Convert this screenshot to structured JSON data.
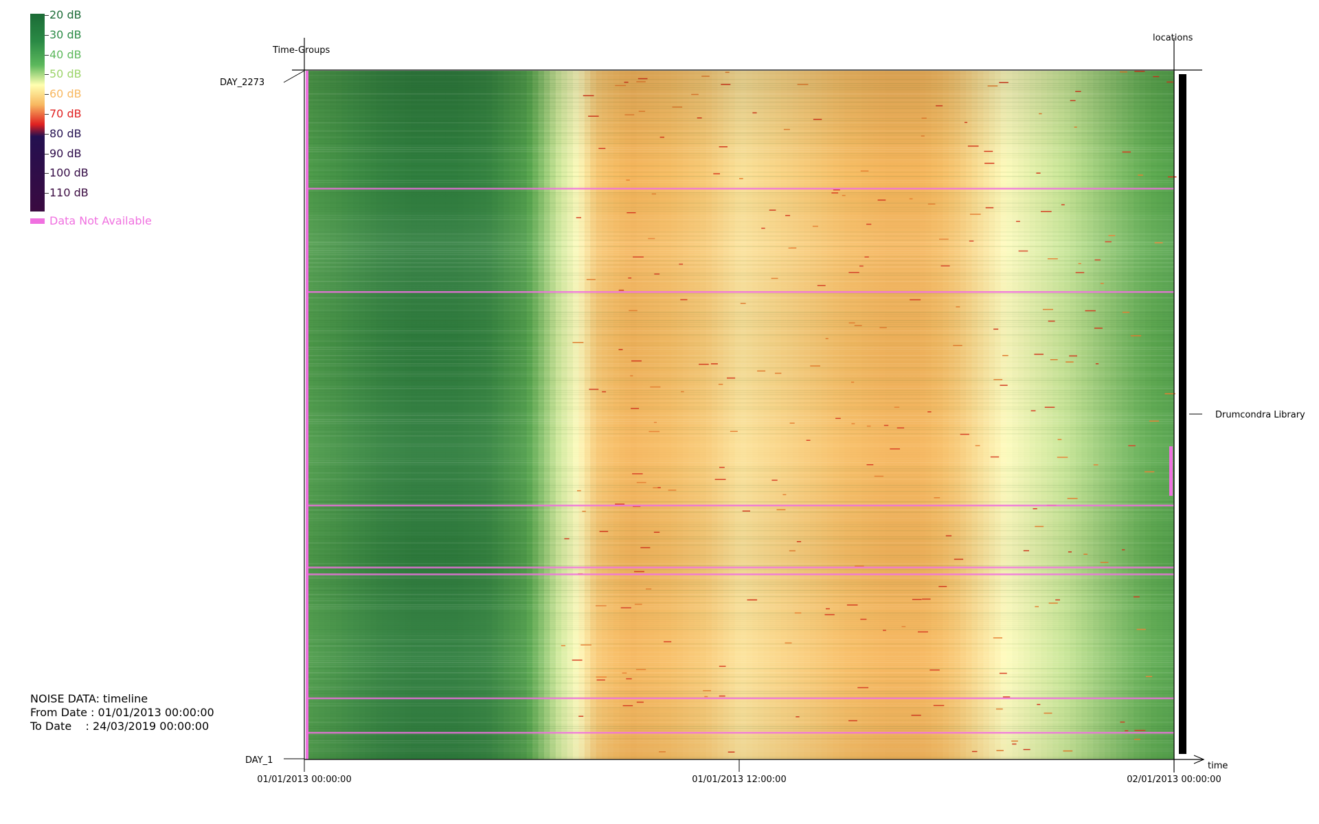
{
  "legend": {
    "items": [
      {
        "label": "20 dB",
        "color": "#1b6b36"
      },
      {
        "label": "30 dB",
        "color": "#2a8a45"
      },
      {
        "label": "40 dB",
        "color": "#5cb85c"
      },
      {
        "label": "50 dB",
        "color": "#c9e89a"
      },
      {
        "label": "60 dB",
        "color": "#f8b860"
      },
      {
        "label": "70 dB",
        "color": "#e02020"
      },
      {
        "label": "80 dB",
        "color": "#241050"
      },
      {
        "label": "90 dB",
        "color": "#2c0a48"
      },
      {
        "label": "100 dB",
        "color": "#330a44"
      },
      {
        "label": "110 dB",
        "color": "#3a0a40"
      }
    ],
    "na_label": "Data Not Available",
    "na_color": "#f070e0"
  },
  "info": {
    "title": "NOISE DATA: timeline",
    "from": "From Date : 01/01/2013 00:00:00",
    "to": "To Date    : 24/03/2019 00:00:00"
  },
  "chart_data": {
    "type": "heatmap",
    "y_axis_title": "Time-Groups",
    "y_top_label": "DAY_2273",
    "y_bottom_label": "DAY_1",
    "x_axis_title": "time",
    "x_ticks": [
      "01/01/2013 00:00:00",
      "01/01/2013 12:00:00",
      "02/01/2013 00:00:00"
    ],
    "right_axis_title": "locations",
    "location": "Drumcondra Library",
    "x_range_hours": [
      0,
      24
    ],
    "y_range_days": [
      1,
      2273
    ],
    "hourly_typical_dB": [
      38,
      36,
      34,
      33,
      33,
      34,
      38,
      48,
      56,
      58,
      57,
      56,
      54,
      55,
      56,
      57,
      58,
      58,
      56,
      53,
      50,
      47,
      44,
      41,
      39
    ],
    "no_data_day_fractions": [
      0.17,
      0.32,
      0.63,
      0.72,
      0.73,
      0.91,
      0.96
    ]
  }
}
